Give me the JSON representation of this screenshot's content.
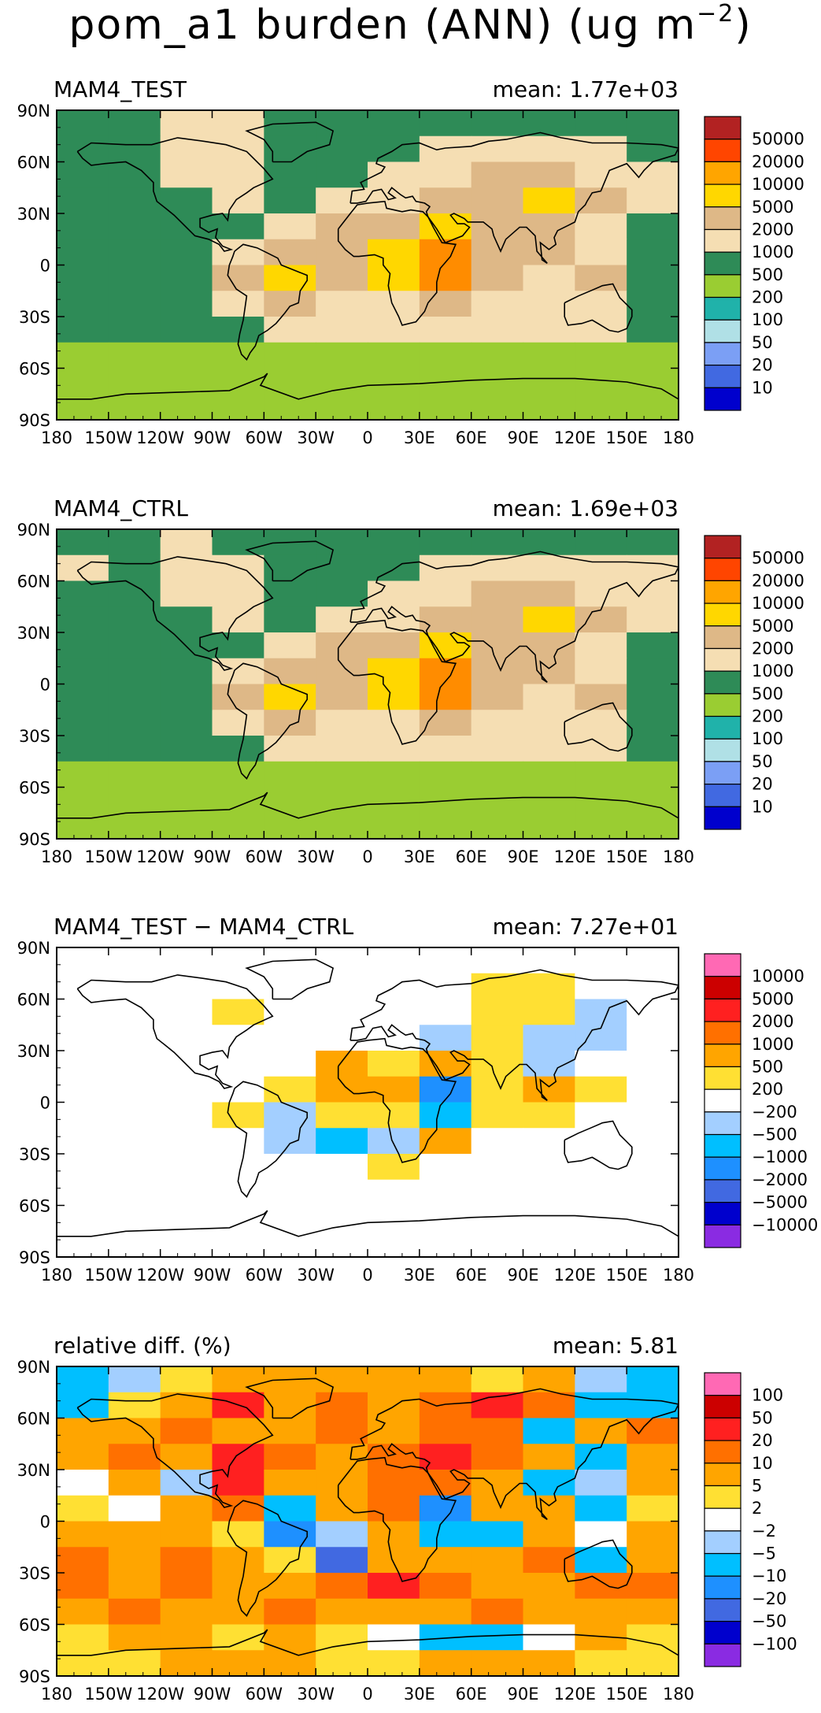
{
  "title": "pom_a1 burden (ANN) (ug m",
  "title_exp": "−2",
  "title_close": ")",
  "chart_data": [
    {
      "type": "heatmap",
      "title": "MAM4_TEST",
      "mean_label": "mean:  1.77e+03",
      "xticks": [
        "180",
        "150W",
        "120W",
        "90W",
        "60W",
        "30W",
        "0",
        "30E",
        "60E",
        "90E",
        "120E",
        "150E",
        "180"
      ],
      "yticks": [
        "90N",
        "60N",
        "30N",
        "0",
        "30S",
        "60S",
        "90S"
      ],
      "xlim": [
        -180,
        180
      ],
      "ylim": [
        -90,
        90
      ],
      "legend": [
        "50000",
        "20000",
        "10000",
        "5000",
        "2000",
        "1000",
        "500",
        "200",
        "100",
        "50",
        "20",
        "10"
      ],
      "legend_colors": [
        "#b22222",
        "#ff4500",
        "#ffa500",
        "#ffd700",
        "#deb887",
        "#f5deb3",
        "#2e8b57",
        "#9acd32",
        "#20b2aa",
        "#b0e0e6",
        "#7b9ff5",
        "#4169e1",
        "#0000cd"
      ],
      "field": [
        [
          "#2e8b57",
          "#2e8b57",
          "#f5deb3",
          "#f5deb3",
          "#2e8b57",
          "#2e8b57",
          "#2e8b57",
          "#2e8b57",
          "#2e8b57",
          "#2e8b57",
          "#2e8b57",
          "#2e8b57"
        ],
        [
          "#2e8b57",
          "#2e8b57",
          "#f5deb3",
          "#f5deb3",
          "#2e8b57",
          "#2e8b57",
          "#2e8b57",
          "#f5deb3",
          "#f5deb3",
          "#f5deb3",
          "#f5deb3",
          "#2e8b57"
        ],
        [
          "#2e8b57",
          "#2e8b57",
          "#f5deb3",
          "#f5deb3",
          "#2e8b57",
          "#2e8b57",
          "#f5deb3",
          "#f5deb3",
          "#deb887",
          "#deb887",
          "#f5deb3",
          "#f5deb3"
        ],
        [
          "#2e8b57",
          "#2e8b57",
          "#2e8b57",
          "#f5deb3",
          "#2e8b57",
          "#f5deb3",
          "#f5deb3",
          "#deb887",
          "#deb887",
          "#ffd700",
          "#deb887",
          "#f5deb3"
        ],
        [
          "#2e8b57",
          "#2e8b57",
          "#2e8b57",
          "#2e8b57",
          "#f5deb3",
          "#deb887",
          "#deb887",
          "#ffd700",
          "#deb887",
          "#deb887",
          "#f5deb3",
          "#2e8b57"
        ],
        [
          "#2e8b57",
          "#2e8b57",
          "#2e8b57",
          "#f5deb3",
          "#deb887",
          "#deb887",
          "#ffd700",
          "#ff8c00",
          "#deb887",
          "#deb887",
          "#f5deb3",
          "#2e8b57"
        ],
        [
          "#2e8b57",
          "#2e8b57",
          "#2e8b57",
          "#deb887",
          "#ffd700",
          "#deb887",
          "#ffd700",
          "#ff8c00",
          "#deb887",
          "#f5deb3",
          "#deb887",
          "#2e8b57"
        ],
        [
          "#2e8b57",
          "#2e8b57",
          "#2e8b57",
          "#f5deb3",
          "#deb887",
          "#f5deb3",
          "#f5deb3",
          "#deb887",
          "#f5deb3",
          "#f5deb3",
          "#f5deb3",
          "#2e8b57"
        ],
        [
          "#2e8b57",
          "#2e8b57",
          "#2e8b57",
          "#2e8b57",
          "#f5deb3",
          "#f5deb3",
          "#f5deb3",
          "#f5deb3",
          "#f5deb3",
          "#f5deb3",
          "#f5deb3",
          "#2e8b57"
        ],
        [
          "#9acd32",
          "#9acd32",
          "#9acd32",
          "#9acd32",
          "#9acd32",
          "#9acd32",
          "#9acd32",
          "#9acd32",
          "#9acd32",
          "#9acd32",
          "#9acd32",
          "#9acd32"
        ],
        [
          "#9acd32",
          "#9acd32",
          "#9acd32",
          "#9acd32",
          "#9acd32",
          "#9acd32",
          "#9acd32",
          "#9acd32",
          "#9acd32",
          "#9acd32",
          "#9acd32",
          "#9acd32"
        ],
        [
          "#9acd32",
          "#9acd32",
          "#9acd32",
          "#9acd32",
          "#9acd32",
          "#9acd32",
          "#9acd32",
          "#9acd32",
          "#9acd32",
          "#9acd32",
          "#9acd32",
          "#9acd32"
        ]
      ]
    },
    {
      "type": "heatmap",
      "title": "MAM4_CTRL",
      "mean_label": "mean:  1.69e+03",
      "xticks": [
        "180",
        "150W",
        "120W",
        "90W",
        "60W",
        "30W",
        "0",
        "30E",
        "60E",
        "90E",
        "120E",
        "150E",
        "180"
      ],
      "yticks": [
        "90N",
        "60N",
        "30N",
        "0",
        "30S",
        "60S",
        "90S"
      ],
      "xlim": [
        -180,
        180
      ],
      "ylim": [
        -90,
        90
      ],
      "legend": [
        "50000",
        "20000",
        "10000",
        "5000",
        "2000",
        "1000",
        "500",
        "200",
        "100",
        "50",
        "20",
        "10"
      ],
      "legend_colors": [
        "#b22222",
        "#ff4500",
        "#ffa500",
        "#ffd700",
        "#deb887",
        "#f5deb3",
        "#2e8b57",
        "#9acd32",
        "#20b2aa",
        "#b0e0e6",
        "#7b9ff5",
        "#4169e1",
        "#0000cd"
      ],
      "field": [
        [
          "#2e8b57",
          "#2e8b57",
          "#f5deb3",
          "#2e8b57",
          "#2e8b57",
          "#2e8b57",
          "#2e8b57",
          "#2e8b57",
          "#2e8b57",
          "#2e8b57",
          "#2e8b57",
          "#2e8b57"
        ],
        [
          "#f5deb3",
          "#2e8b57",
          "#f5deb3",
          "#f5deb3",
          "#2e8b57",
          "#2e8b57",
          "#2e8b57",
          "#f5deb3",
          "#f5deb3",
          "#f5deb3",
          "#f5deb3",
          "#f5deb3"
        ],
        [
          "#2e8b57",
          "#2e8b57",
          "#f5deb3",
          "#f5deb3",
          "#2e8b57",
          "#2e8b57",
          "#f5deb3",
          "#f5deb3",
          "#deb887",
          "#deb887",
          "#f5deb3",
          "#f5deb3"
        ],
        [
          "#2e8b57",
          "#2e8b57",
          "#2e8b57",
          "#f5deb3",
          "#2e8b57",
          "#f5deb3",
          "#f5deb3",
          "#deb887",
          "#deb887",
          "#ffd700",
          "#deb887",
          "#f5deb3"
        ],
        [
          "#2e8b57",
          "#2e8b57",
          "#2e8b57",
          "#2e8b57",
          "#f5deb3",
          "#deb887",
          "#deb887",
          "#ffd700",
          "#deb887",
          "#deb887",
          "#f5deb3",
          "#2e8b57"
        ],
        [
          "#2e8b57",
          "#2e8b57",
          "#2e8b57",
          "#f5deb3",
          "#deb887",
          "#deb887",
          "#ffd700",
          "#ff8c00",
          "#deb887",
          "#deb887",
          "#f5deb3",
          "#2e8b57"
        ],
        [
          "#2e8b57",
          "#2e8b57",
          "#2e8b57",
          "#deb887",
          "#ffd700",
          "#deb887",
          "#ffd700",
          "#ff8c00",
          "#deb887",
          "#f5deb3",
          "#deb887",
          "#2e8b57"
        ],
        [
          "#2e8b57",
          "#2e8b57",
          "#2e8b57",
          "#f5deb3",
          "#deb887",
          "#f5deb3",
          "#f5deb3",
          "#deb887",
          "#f5deb3",
          "#f5deb3",
          "#f5deb3",
          "#2e8b57"
        ],
        [
          "#2e8b57",
          "#2e8b57",
          "#2e8b57",
          "#2e8b57",
          "#f5deb3",
          "#f5deb3",
          "#f5deb3",
          "#f5deb3",
          "#f5deb3",
          "#f5deb3",
          "#f5deb3",
          "#2e8b57"
        ],
        [
          "#9acd32",
          "#9acd32",
          "#9acd32",
          "#9acd32",
          "#9acd32",
          "#9acd32",
          "#9acd32",
          "#9acd32",
          "#9acd32",
          "#9acd32",
          "#9acd32",
          "#9acd32"
        ],
        [
          "#9acd32",
          "#9acd32",
          "#9acd32",
          "#9acd32",
          "#9acd32",
          "#9acd32",
          "#9acd32",
          "#9acd32",
          "#9acd32",
          "#9acd32",
          "#9acd32",
          "#9acd32"
        ],
        [
          "#9acd32",
          "#9acd32",
          "#9acd32",
          "#9acd32",
          "#9acd32",
          "#9acd32",
          "#9acd32",
          "#9acd32",
          "#9acd32",
          "#9acd32",
          "#9acd32",
          "#9acd32"
        ]
      ]
    },
    {
      "type": "heatmap",
      "title": "MAM4_TEST − MAM4_CTRL",
      "mean_label": "mean:  7.27e+01",
      "xticks": [
        "180",
        "150W",
        "120W",
        "90W",
        "60W",
        "30W",
        "0",
        "30E",
        "60E",
        "90E",
        "120E",
        "150E",
        "180"
      ],
      "yticks": [
        "90N",
        "60N",
        "30N",
        "0",
        "30S",
        "60S",
        "90S"
      ],
      "xlim": [
        -180,
        180
      ],
      "ylim": [
        -90,
        90
      ],
      "legend": [
        "10000",
        "5000",
        "2000",
        "1000",
        "500",
        "200",
        "−200",
        "−500",
        "−1000",
        "−2000",
        "−5000",
        "−10000"
      ],
      "legend_colors": [
        "#ff69b4",
        "#cc0000",
        "#ff2020",
        "#ff7000",
        "#ffa500",
        "#ffe033",
        "#ffffff",
        "#a3cfff",
        "#00bfff",
        "#1e90ff",
        "#4169e1",
        "#0000cd",
        "#8a2be2"
      ],
      "field": [
        [
          "#ffffff",
          "#ffffff",
          "#ffffff",
          "#ffffff",
          "#ffffff",
          "#ffffff",
          "#ffffff",
          "#ffffff",
          "#ffffff",
          "#ffffff",
          "#ffffff",
          "#ffffff"
        ],
        [
          "#ffffff",
          "#ffffff",
          "#ffffff",
          "#ffffff",
          "#ffffff",
          "#ffffff",
          "#ffffff",
          "#ffffff",
          "#ffe033",
          "#ffe033",
          "#ffffff",
          "#ffffff"
        ],
        [
          "#ffffff",
          "#ffffff",
          "#ffffff",
          "#ffe033",
          "#ffffff",
          "#ffffff",
          "#ffffff",
          "#ffffff",
          "#ffe033",
          "#ffe033",
          "#a3cfff",
          "#ffffff"
        ],
        [
          "#ffffff",
          "#ffffff",
          "#ffffff",
          "#ffffff",
          "#ffffff",
          "#ffffff",
          "#ffffff",
          "#a3cfff",
          "#ffe033",
          "#a3cfff",
          "#a3cfff",
          "#ffffff"
        ],
        [
          "#ffffff",
          "#ffffff",
          "#ffffff",
          "#ffffff",
          "#ffffff",
          "#ffa500",
          "#ffe033",
          "#ffa500",
          "#ffe033",
          "#a3cfff",
          "#ffffff",
          "#ffffff"
        ],
        [
          "#ffffff",
          "#ffffff",
          "#ffffff",
          "#ffffff",
          "#ffe033",
          "#ffa500",
          "#ffa500",
          "#1e90ff",
          "#ffe033",
          "#ffa500",
          "#ffe033",
          "#ffffff"
        ],
        [
          "#ffffff",
          "#ffffff",
          "#ffffff",
          "#ffe033",
          "#a3cfff",
          "#ffe033",
          "#ffe033",
          "#00bfff",
          "#ffe033",
          "#ffe033",
          "#ffffff",
          "#ffffff"
        ],
        [
          "#ffffff",
          "#ffffff",
          "#ffffff",
          "#ffffff",
          "#a3cfff",
          "#00bfff",
          "#a3cfff",
          "#ffa500",
          "#ffffff",
          "#ffffff",
          "#ffffff",
          "#ffffff"
        ],
        [
          "#ffffff",
          "#ffffff",
          "#ffffff",
          "#ffffff",
          "#ffffff",
          "#ffffff",
          "#ffe033",
          "#ffffff",
          "#ffffff",
          "#ffffff",
          "#ffffff",
          "#ffffff"
        ],
        [
          "#ffffff",
          "#ffffff",
          "#ffffff",
          "#ffffff",
          "#ffffff",
          "#ffffff",
          "#ffffff",
          "#ffffff",
          "#ffffff",
          "#ffffff",
          "#ffffff",
          "#ffffff"
        ],
        [
          "#ffffff",
          "#ffffff",
          "#ffffff",
          "#ffffff",
          "#ffffff",
          "#ffffff",
          "#ffffff",
          "#ffffff",
          "#ffffff",
          "#ffffff",
          "#ffffff",
          "#ffffff"
        ],
        [
          "#ffffff",
          "#ffffff",
          "#ffffff",
          "#ffffff",
          "#ffffff",
          "#ffffff",
          "#ffffff",
          "#ffffff",
          "#ffffff",
          "#ffffff",
          "#ffffff",
          "#ffffff"
        ]
      ]
    },
    {
      "type": "heatmap",
      "title": "relative diff. (%)",
      "mean_label": "mean:   5.81",
      "xticks": [
        "180",
        "150W",
        "120W",
        "90W",
        "60W",
        "30W",
        "0",
        "30E",
        "60E",
        "90E",
        "120E",
        "150E",
        "180"
      ],
      "yticks": [
        "90N",
        "60N",
        "30N",
        "0",
        "30S",
        "60S",
        "90S"
      ],
      "xlim": [
        -180,
        180
      ],
      "ylim": [
        -90,
        90
      ],
      "legend": [
        "100",
        "50",
        "20",
        "10",
        "5",
        "2",
        "−2",
        "−5",
        "−10",
        "−20",
        "−50",
        "−100"
      ],
      "legend_colors": [
        "#ff69b4",
        "#cc0000",
        "#ff2020",
        "#ff7000",
        "#ffa500",
        "#ffe033",
        "#ffffff",
        "#a3cfff",
        "#00bfff",
        "#1e90ff",
        "#4169e1",
        "#0000cd",
        "#8a2be2"
      ],
      "field": [
        [
          "#00bfff",
          "#a3cfff",
          "#ffe033",
          "#ffa500",
          "#ffa500",
          "#ffa500",
          "#ffa500",
          "#ffa500",
          "#ffe033",
          "#ffa500",
          "#a3cfff",
          "#00bfff"
        ],
        [
          "#00bfff",
          "#ffe033",
          "#ffa500",
          "#ff2020",
          "#ffa500",
          "#ff7000",
          "#ffa500",
          "#ff7000",
          "#ff2020",
          "#ff7000",
          "#00bfff",
          "#00bfff"
        ],
        [
          "#ffa500",
          "#ffa500",
          "#ff7000",
          "#ffa500",
          "#ffa500",
          "#ff7000",
          "#ffa500",
          "#ff7000",
          "#ff7000",
          "#00bfff",
          "#ffa500",
          "#ff7000"
        ],
        [
          "#ffa500",
          "#ff7000",
          "#ffa500",
          "#ff2020",
          "#ff7000",
          "#ffa500",
          "#ff7000",
          "#ff2020",
          "#ff7000",
          "#ffa500",
          "#00bfff",
          "#ffa500"
        ],
        [
          "#ffffff",
          "#ffa500",
          "#a3cfff",
          "#ff2020",
          "#ffa500",
          "#ffa500",
          "#ff7000",
          "#ff7000",
          "#ffa500",
          "#00bfff",
          "#a3cfff",
          "#ffa500"
        ],
        [
          "#ffe033",
          "#ffffff",
          "#ffa500",
          "#ff7000",
          "#00bfff",
          "#ffa500",
          "#ff7000",
          "#1e90ff",
          "#ffa500",
          "#ffa500",
          "#00bfff",
          "#ffe033"
        ],
        [
          "#ffa500",
          "#ffa500",
          "#ffa500",
          "#ffe033",
          "#1e90ff",
          "#a3cfff",
          "#ffa500",
          "#00bfff",
          "#00bfff",
          "#ffa500",
          "#ffffff",
          "#ffa500"
        ],
        [
          "#ff7000",
          "#ffa500",
          "#ff7000",
          "#ffa500",
          "#ffe033",
          "#4169e1",
          "#ffa500",
          "#ffa500",
          "#ffa500",
          "#ff7000",
          "#00bfff",
          "#ffa500"
        ],
        [
          "#ff7000",
          "#ffa500",
          "#ff7000",
          "#ffa500",
          "#ffa500",
          "#ff7000",
          "#ff2020",
          "#ff7000",
          "#ffa500",
          "#ffa500",
          "#ff7000",
          "#ff7000"
        ],
        [
          "#ffa500",
          "#ff7000",
          "#ffa500",
          "#ffa500",
          "#ff7000",
          "#ffa500",
          "#ffa500",
          "#ffa500",
          "#ff7000",
          "#ffa500",
          "#ffa500",
          "#ffa500"
        ],
        [
          "#ffe033",
          "#ffa500",
          "#ffa500",
          "#ffe033",
          "#ffa500",
          "#ffe033",
          "#ffffff",
          "#00bfff",
          "#00bfff",
          "#ffffff",
          "#ffa500",
          "#ffe033"
        ],
        [
          "#ffe033",
          "#ffe033",
          "#ffa500",
          "#ffa500",
          "#ffa500",
          "#ffe033",
          "#ffe033",
          "#ffa500",
          "#ffa500",
          "#ffa500",
          "#ffe033",
          "#ffe033"
        ]
      ]
    }
  ]
}
